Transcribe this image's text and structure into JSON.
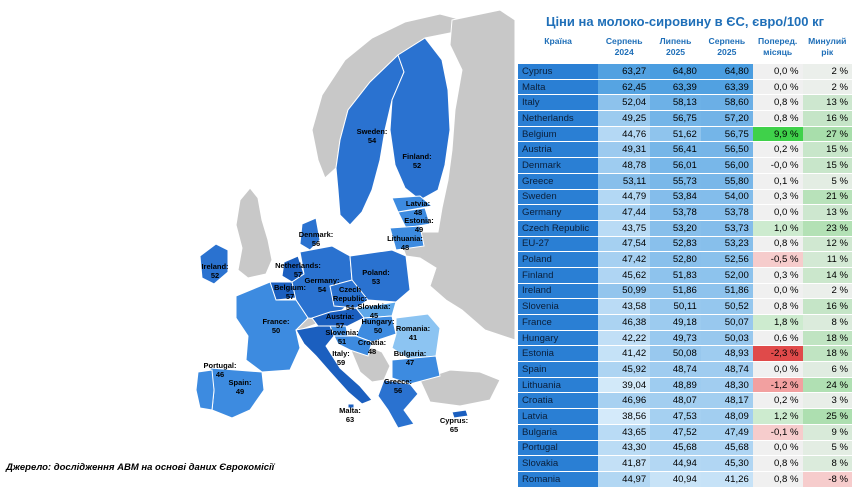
{
  "title": "Ціни на молоко-сировину в ЄС, євро/100 кг",
  "source": "Джерело: дослідження АВМ на основі даних Єврокомісії",
  "columns": [
    "Країна",
    "Серпень 2024",
    "Липень 2025",
    "Серпень 2025",
    "Поперед. місяць",
    "Минулий рік"
  ],
  "column_lines": [
    [
      "Країна"
    ],
    [
      "Серпень",
      "2024"
    ],
    [
      "Липень",
      "2025"
    ],
    [
      "Серпень",
      "2025"
    ],
    [
      "Поперед.",
      "місяць"
    ],
    [
      "Минулий",
      "рік"
    ]
  ],
  "chart_data": [
    {
      "type": "table",
      "columns": [
        "Країна",
        "Серпень 2024",
        "Липень 2025",
        "Серпень 2025",
        "Поперед. місяць",
        "Минулий рік"
      ],
      "rows": [
        [
          "Cyprus",
          "63,27",
          "64,80",
          "64,80",
          "0,0 %",
          "2 %"
        ],
        [
          "Malta",
          "62,45",
          "63,39",
          "63,39",
          "0,0 %",
          "2 %"
        ],
        [
          "Italy",
          "52,04",
          "58,13",
          "58,60",
          "0,8 %",
          "13 %"
        ],
        [
          "Netherlands",
          "49,25",
          "56,75",
          "57,20",
          "0,8 %",
          "16 %"
        ],
        [
          "Belgium",
          "44,76",
          "51,62",
          "56,75",
          "9,9 %",
          "27 %"
        ],
        [
          "Austria",
          "49,31",
          "56,41",
          "56,50",
          "0,2 %",
          "15 %"
        ],
        [
          "Denmark",
          "48,78",
          "56,01",
          "56,00",
          "-0,0 %",
          "15 %"
        ],
        [
          "Greece",
          "53,11",
          "55,73",
          "55,80",
          "0,1 %",
          "5 %"
        ],
        [
          "Sweden",
          "44,79",
          "53,84",
          "54,00",
          "0,3 %",
          "21 %"
        ],
        [
          "Germany",
          "47,44",
          "53,78",
          "53,78",
          "0,0 %",
          "13 %"
        ],
        [
          "Czech Republic",
          "43,75",
          "53,20",
          "53,73",
          "1,0 %",
          "23 %"
        ],
        [
          "EU-27",
          "47,54",
          "52,83",
          "53,23",
          "0,8 %",
          "12 %"
        ],
        [
          "Poland",
          "47,42",
          "52,80",
          "52,56",
          "-0,5 %",
          "11 %"
        ],
        [
          "Finland",
          "45,62",
          "51,83",
          "52,00",
          "0,3 %",
          "14 %"
        ],
        [
          "Ireland",
          "50,99",
          "51,86",
          "51,86",
          "0,0 %",
          "2 %"
        ],
        [
          "Slovenia",
          "43,58",
          "50,11",
          "50,52",
          "0,8 %",
          "16 %"
        ],
        [
          "France",
          "46,38",
          "49,18",
          "50,07",
          "1,8 %",
          "8 %"
        ],
        [
          "Hungary",
          "42,22",
          "49,73",
          "50,03",
          "0,6 %",
          "18 %"
        ],
        [
          "Estonia",
          "41,42",
          "50,08",
          "48,93",
          "-2,3 %",
          "18 %"
        ],
        [
          "Spain",
          "45,92",
          "48,74",
          "48,74",
          "0,0 %",
          "6 %"
        ],
        [
          "Lithuania",
          "39,04",
          "48,89",
          "48,30",
          "-1,2 %",
          "24 %"
        ],
        [
          "Croatia",
          "46,96",
          "48,07",
          "48,17",
          "0,2 %",
          "3 %"
        ],
        [
          "Latvia",
          "38,56",
          "47,53",
          "48,09",
          "1,2 %",
          "25 %"
        ],
        [
          "Bulgaria",
          "43,65",
          "47,52",
          "47,49",
          "-0,1 %",
          "9 %"
        ],
        [
          "Portugal",
          "43,30",
          "45,68",
          "45,68",
          "0,0 %",
          "5 %"
        ],
        [
          "Slovakia",
          "41,87",
          "44,94",
          "45,30",
          "0,8 %",
          "8 %"
        ],
        [
          "Romania",
          "44,97",
          "40,94",
          "41,26",
          "0,8 %",
          "-8 %"
        ]
      ],
      "row_label_color": "#2a7fd4",
      "number_color_range": [
        "#c6e2f7",
        "#4a9de0"
      ]
    },
    {
      "type": "heatmap",
      "map_labels": [
        [
          "Sweden",
          "54"
        ],
        [
          "Finland",
          "52"
        ],
        [
          "Latvia",
          "48"
        ],
        [
          "Estonia",
          "49"
        ],
        [
          "Lithuania",
          "48"
        ],
        [
          "Denmark",
          "56"
        ],
        [
          "Ireland",
          "52"
        ],
        [
          "Netherlands",
          "57"
        ],
        [
          "Germany",
          "54"
        ],
        [
          "Poland",
          "53"
        ],
        [
          "Belgium",
          "57"
        ],
        [
          "Czech Republic",
          "54"
        ],
        [
          "Slovakia",
          "45"
        ],
        [
          "France",
          "50"
        ],
        [
          "Austria",
          "57"
        ],
        [
          "Hungary",
          "50"
        ],
        [
          "Slovenia",
          "51"
        ],
        [
          "Romania",
          "41"
        ],
        [
          "Croatia",
          "48"
        ],
        [
          "Bulgaria",
          "47"
        ],
        [
          "Italy",
          "59"
        ],
        [
          "Portugal",
          "46"
        ],
        [
          "Spain",
          "49"
        ],
        [
          "Greece",
          "56"
        ],
        [
          "Malta",
          "63"
        ],
        [
          "Cyprus",
          "65"
        ]
      ],
      "map_colors": {
        "high": "#1b5fbf",
        "mid": "#3d8be0",
        "low": "#8cc4f2",
        "non_eu": "#c8c8c8"
      }
    }
  ],
  "map_text": [
    {
      "lines": [
        "Sweden:",
        "54"
      ]
    },
    {
      "lines": [
        "Finland:",
        "52"
      ]
    },
    {
      "lines": [
        "Latvia:",
        "48"
      ]
    },
    {
      "lines": [
        "Estonia:",
        "49"
      ]
    },
    {
      "lines": [
        "Lithuania:",
        "48"
      ]
    },
    {
      "lines": [
        "Denmark:",
        "56"
      ]
    },
    {
      "lines": [
        "Ireland:",
        "52"
      ]
    },
    {
      "lines": [
        "Netherlands:",
        "57"
      ]
    },
    {
      "lines": [
        "Germany:",
        "54"
      ]
    },
    {
      "lines": [
        "Poland:",
        "53"
      ]
    },
    {
      "lines": [
        "Belgium:",
        "57"
      ]
    },
    {
      "lines": [
        "Czech",
        "Republic:",
        "54"
      ]
    },
    {
      "lines": [
        "Slovakia:",
        "45"
      ]
    },
    {
      "lines": [
        "France:",
        "50"
      ]
    },
    {
      "lines": [
        "Austria:",
        "57"
      ]
    },
    {
      "lines": [
        "Hungary:",
        "50"
      ]
    },
    {
      "lines": [
        "Slovenia:",
        "51"
      ]
    },
    {
      "lines": [
        "Romania:",
        "41"
      ]
    },
    {
      "lines": [
        "Croatia:",
        "48"
      ]
    },
    {
      "lines": [
        "Bulgaria:",
        "47"
      ]
    },
    {
      "lines": [
        "Italy:",
        "59"
      ]
    },
    {
      "lines": [
        "Portugal:",
        "46"
      ]
    },
    {
      "lines": [
        "Spain:",
        "49"
      ]
    },
    {
      "lines": [
        "Greece:",
        "56"
      ]
    },
    {
      "lines": [
        "Malta:",
        "63"
      ]
    },
    {
      "lines": [
        "Cyprus:",
        "65"
      ]
    }
  ]
}
